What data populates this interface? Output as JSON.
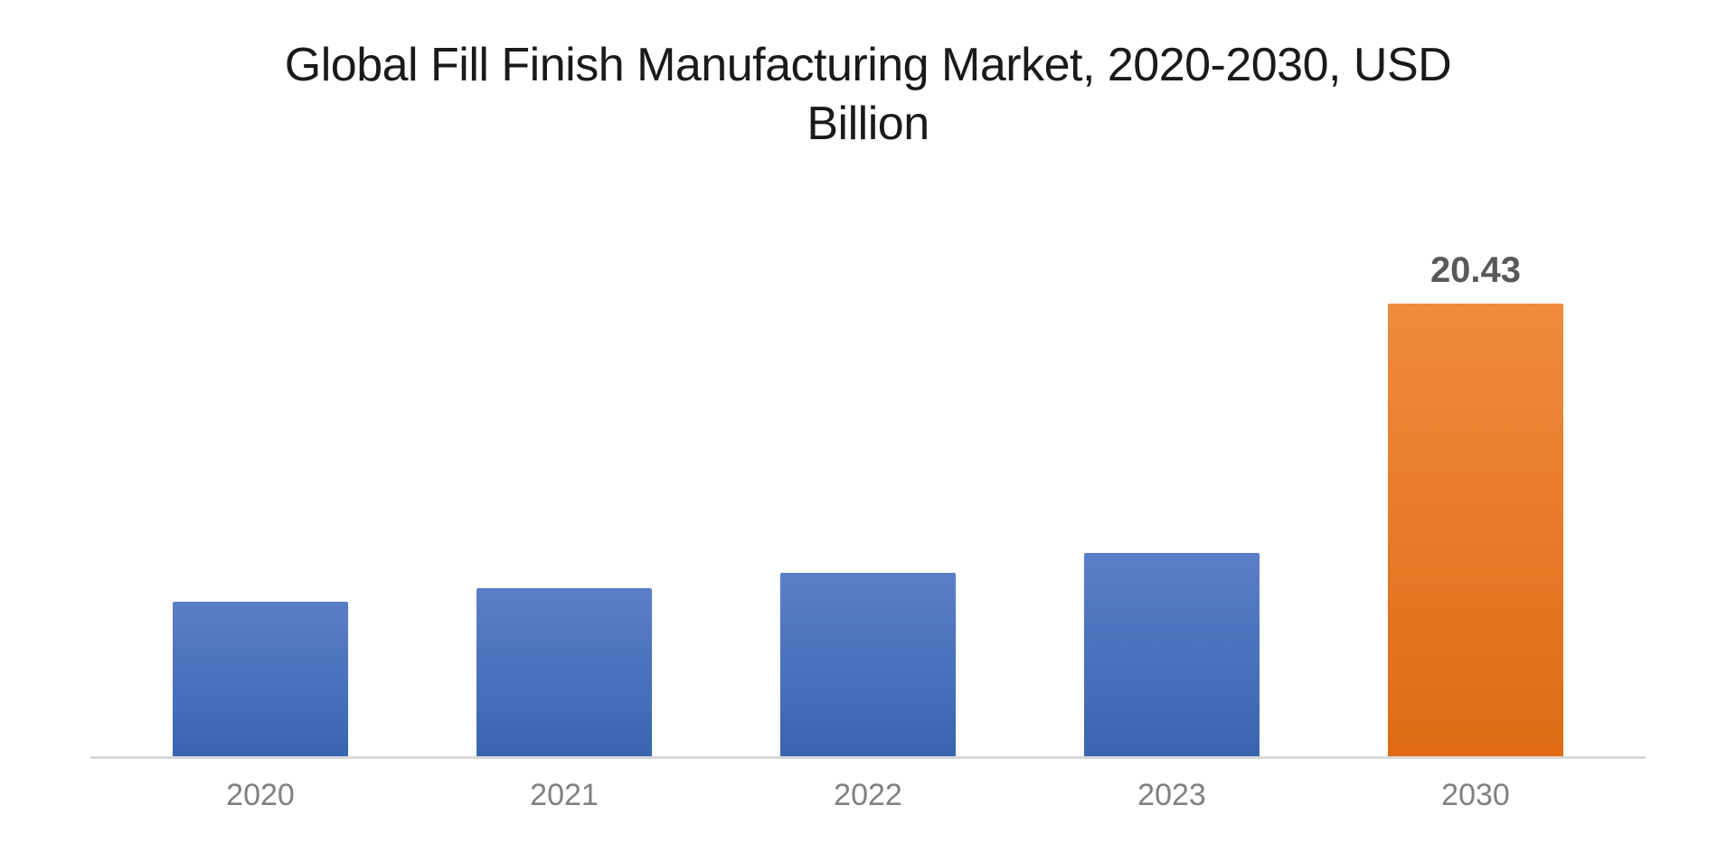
{
  "chart": {
    "type": "bar",
    "title": "Global Fill Finish Manufacturing Market, 2020-2030, USD Billion",
    "title_fontsize": 52,
    "title_color": "#1a1a1a",
    "title_weight": 500,
    "background_color": "#ffffff",
    "axis_line_color": "#d9d9d9",
    "axis_line_width": 3,
    "category_fontsize": 34,
    "category_color": "#808080",
    "value_label_fontsize": 40,
    "value_label_color": "#595959",
    "value_label_weight": 600,
    "ylim_max": 26,
    "bar_width_pct": 58,
    "bars": [
      {
        "category": "2020",
        "value": 7.0,
        "show_label": false,
        "label": "",
        "fill_top": "#5b7ec8",
        "fill_bottom": "#3a64b0"
      },
      {
        "category": "2021",
        "value": 7.6,
        "show_label": false,
        "label": "",
        "fill_top": "#5b7ec8",
        "fill_bottom": "#3a64b0"
      },
      {
        "category": "2022",
        "value": 8.3,
        "show_label": false,
        "label": "",
        "fill_top": "#5b7ec8",
        "fill_bottom": "#3a64b0"
      },
      {
        "category": "2023",
        "value": 9.2,
        "show_label": false,
        "label": "",
        "fill_top": "#5b7ec8",
        "fill_bottom": "#3a64b0"
      },
      {
        "category": "2030",
        "value": 20.43,
        "show_label": true,
        "label": "20.43",
        "fill_top": "#f08b3c",
        "fill_bottom": "#e06a14"
      }
    ]
  }
}
